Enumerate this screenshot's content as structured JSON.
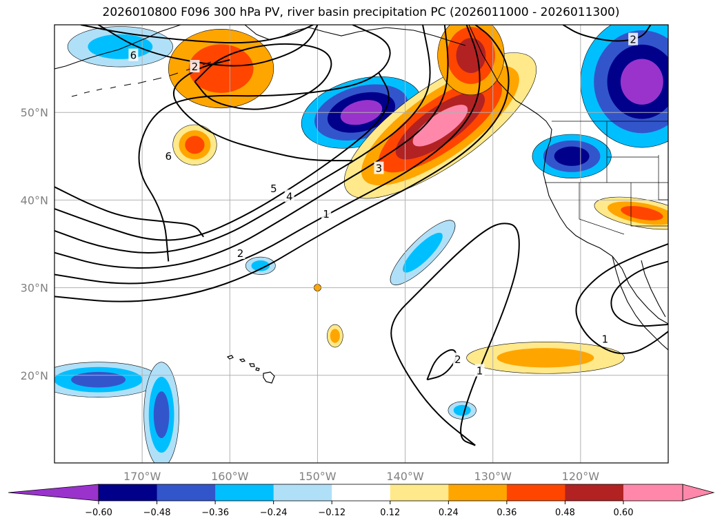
{
  "title": "2026010800 F096 300 hPa PV, river basin precipitation PC (2026011000 - 2026011300)",
  "map": {
    "lon_range": [
      -180,
      -110
    ],
    "lat_range": [
      10,
      60
    ],
    "lon_ticks": [
      {
        "value": -170,
        "label": "170°W"
      },
      {
        "value": -160,
        "label": "160°W"
      },
      {
        "value": -150,
        "label": "150°W"
      },
      {
        "value": -140,
        "label": "140°W"
      },
      {
        "value": -130,
        "label": "130°W"
      },
      {
        "value": -120,
        "label": "120°W"
      }
    ],
    "lat_ticks": [
      {
        "value": 50,
        "label": "50°N"
      },
      {
        "value": 40,
        "label": "40°N"
      },
      {
        "value": 30,
        "label": "30°N"
      },
      {
        "value": 20,
        "label": "20°N"
      }
    ],
    "gridlines": true,
    "contour_labels": [
      {
        "text": "6",
        "lon": -171,
        "lat": 56.5
      },
      {
        "text": "2",
        "lon": -164,
        "lat": 55.2
      },
      {
        "text": "6",
        "lon": -167,
        "lat": 45.0
      },
      {
        "text": "5",
        "lon": -155,
        "lat": 41.3
      },
      {
        "text": "4",
        "lon": -153.2,
        "lat": 40.4
      },
      {
        "text": "3",
        "lon": -143,
        "lat": 43.6
      },
      {
        "text": "1",
        "lon": -149,
        "lat": 38.4
      },
      {
        "text": "2",
        "lon": -158.8,
        "lat": 33.9
      },
      {
        "text": "2",
        "lon": -134,
        "lat": 21.8
      },
      {
        "text": "1",
        "lon": -131.5,
        "lat": 20.5
      },
      {
        "text": "2",
        "lon": -114,
        "lat": 58.3
      },
      {
        "text": "1",
        "lon": -117.2,
        "lat": 24.1
      }
    ]
  },
  "colorbar": {
    "levels": [
      -0.72,
      -0.6,
      -0.48,
      -0.36,
      -0.24,
      -0.12,
      0.12,
      0.24,
      0.36,
      0.48,
      0.6,
      0.72
    ],
    "colors": [
      "#9933cc",
      "#00008b",
      "#3355cc",
      "#00bfff",
      "#b0e0f8",
      "#ffffff",
      "#ffe98a",
      "#ffa500",
      "#ff4500",
      "#b22222",
      "#ff88aa"
    ],
    "under_color": "#9933cc",
    "over_color": "#ff88aa",
    "tick_labels": [
      "−0.60",
      "−0.48",
      "−0.36",
      "−0.24",
      "−0.12",
      "0.12",
      "0.24",
      "0.36",
      "0.48",
      "0.60"
    ]
  },
  "fields": [
    {
      "lon": -161,
      "lat": 55.0,
      "rx": 6,
      "ry": 4.5,
      "rot": 0,
      "levels": [
        "#ffa500",
        "#ff4500"
      ]
    },
    {
      "lon": -145,
      "lat": 50.0,
      "rx": 7,
      "ry": 3.8,
      "rot": -15,
      "levels": [
        "#00bfff",
        "#3355cc",
        "#00008b",
        "#9933cc"
      ]
    },
    {
      "lon": -136,
      "lat": 48.5,
      "rx": 13,
      "ry": 4.5,
      "rot": -35,
      "levels": [
        "#ffe98a",
        "#ffa500",
        "#ff4500",
        "#b22222",
        "#ff88aa"
      ]
    },
    {
      "lon": -132.5,
      "lat": 56.5,
      "rx": 3.8,
      "ry": 4.5,
      "rot": 0,
      "levels": [
        "#ffa500",
        "#ff4500",
        "#b22222"
      ]
    },
    {
      "lon": -164,
      "lat": 46.3,
      "rx": 2.5,
      "ry": 2.3,
      "rot": 0,
      "levels": [
        "#ffe98a",
        "#ffa500",
        "#ff4500"
      ]
    },
    {
      "lon": -113,
      "lat": 53.5,
      "rx": 7,
      "ry": 7.5,
      "rot": 0,
      "levels": [
        "#00bfff",
        "#3355cc",
        "#00008b",
        "#9933cc"
      ]
    },
    {
      "lon": -121,
      "lat": 45.0,
      "rx": 4.5,
      "ry": 2.5,
      "rot": 0,
      "levels": [
        "#00bfff",
        "#3355cc",
        "#00008b"
      ]
    },
    {
      "lon": -113,
      "lat": 38.5,
      "rx": 5.5,
      "ry": 1.6,
      "rot": 10,
      "levels": [
        "#ffe98a",
        "#ffa500",
        "#ff4500"
      ]
    },
    {
      "lon": -172.5,
      "lat": 57.5,
      "rx": 6,
      "ry": 2.3,
      "rot": 0,
      "levels": [
        "#b0e0f8",
        "#00bfff"
      ]
    },
    {
      "lon": -138,
      "lat": 34.0,
      "rx": 5,
      "ry": 1.5,
      "rot": -45,
      "levels": [
        "#b0e0f8",
        "#00bfff"
      ]
    },
    {
      "lon": -124,
      "lat": 22.0,
      "rx": 9,
      "ry": 1.8,
      "rot": 0,
      "levels": [
        "#ffe98a",
        "#ffa500"
      ]
    },
    {
      "lon": -148,
      "lat": 24.5,
      "rx": 0.9,
      "ry": 1.3,
      "rot": 0,
      "levels": [
        "#ffe98a",
        "#ffa500"
      ]
    },
    {
      "lon": -156.5,
      "lat": 32.5,
      "rx": 1.7,
      "ry": 1.0,
      "rot": 0,
      "levels": [
        "#b0e0f8",
        "#00bfff"
      ]
    },
    {
      "lon": -133.5,
      "lat": 16.0,
      "rx": 1.6,
      "ry": 1.0,
      "rot": 0,
      "levels": [
        "#b0e0f8",
        "#00bfff"
      ]
    },
    {
      "lon": -175,
      "lat": 19.5,
      "rx": 7,
      "ry": 2.0,
      "rot": 0,
      "levels": [
        "#b0e0f8",
        "#00bfff",
        "#3355cc"
      ]
    },
    {
      "lon": -167.8,
      "lat": 15.5,
      "rx": 2.0,
      "ry": 6.0,
      "rot": 0,
      "levels": [
        "#b0e0f8",
        "#00bfff",
        "#3355cc"
      ]
    },
    {
      "lon": -150,
      "lat": 30.0,
      "rx": 0.4,
      "ry": 0.4,
      "rot": 0,
      "levels": [
        "#ffa500"
      ]
    }
  ],
  "contours": [
    [
      [
        -180,
        29
      ],
      [
        -172,
        28.2
      ],
      [
        -164,
        29.2
      ],
      [
        -157,
        31.7
      ],
      [
        -151,
        35.3
      ],
      [
        -145,
        38.7
      ],
      [
        -138,
        42.2
      ],
      [
        -132,
        46.2
      ],
      [
        -128.5,
        50.5
      ],
      [
        -128,
        55
      ],
      [
        -130,
        58.5
      ],
      [
        -132,
        60
      ]
    ],
    [
      [
        -180,
        31.5
      ],
      [
        -172,
        30.2
      ],
      [
        -164,
        31.2
      ],
      [
        -157,
        33.7
      ],
      [
        -151,
        37.2
      ],
      [
        -145,
        40.4
      ],
      [
        -139,
        43.6
      ],
      [
        -134,
        47.5
      ],
      [
        -131.5,
        51.5
      ],
      [
        -131.5,
        56
      ],
      [
        -133,
        60
      ]
    ],
    [
      [
        -180,
        34
      ],
      [
        -174,
        32.3
      ],
      [
        -167,
        32.2
      ],
      [
        -160,
        34.3
      ],
      [
        -154,
        37.8
      ],
      [
        -148,
        41.5
      ],
      [
        -142.5,
        44.8
      ],
      [
        -138,
        48
      ],
      [
        -135.5,
        51.5
      ],
      [
        -135,
        55.5
      ],
      [
        -135.5,
        60
      ]
    ],
    [
      [
        -180,
        36.5
      ],
      [
        -174.5,
        34.5
      ],
      [
        -168,
        33.7
      ],
      [
        -161,
        35.6
      ],
      [
        -155,
        39
      ],
      [
        -149,
        42.6
      ],
      [
        -144,
        45.6
      ],
      [
        -140,
        48.6
      ],
      [
        -137.5,
        51.8
      ],
      [
        -137,
        55
      ],
      [
        -138,
        60
      ]
    ],
    [
      [
        -180,
        39
      ],
      [
        -174.5,
        37
      ],
      [
        -169,
        35.3
      ],
      [
        -164,
        35.6
      ],
      [
        -158,
        38.3
      ],
      [
        -152,
        42
      ],
      [
        -147,
        45.5
      ],
      [
        -143,
        48.8
      ],
      [
        -141.5,
        51.8
      ],
      [
        -143,
        54.5
      ]
    ],
    [
      [
        -180,
        41.5
      ],
      [
        -176,
        39.5
      ],
      [
        -172,
        38
      ],
      [
        -167,
        37.5
      ],
      [
        -164,
        37.2
      ],
      [
        -163,
        35.8
      ]
    ],
    [
      [
        -167,
        33
      ],
      [
        -167.5,
        38.5
      ],
      [
        -171,
        44
      ],
      [
        -169,
        50
      ],
      [
        -164,
        52
      ],
      [
        -155,
        51.8
      ],
      [
        -146,
        52.8
      ],
      [
        -142,
        55
      ],
      [
        -141.5,
        58
      ],
      [
        -146,
        60
      ]
    ],
    [
      [
        -175,
        60
      ],
      [
        -170,
        57
      ],
      [
        -163,
        55.5
      ],
      [
        -158,
        55.2
      ],
      [
        -153.5,
        56.5
      ],
      [
        -151,
        58
      ],
      [
        -150,
        60
      ]
    ],
    [
      [
        -177,
        60
      ],
      [
        -172,
        59
      ],
      [
        -165,
        58.2
      ],
      [
        -158,
        57.8
      ],
      [
        -153,
        58.8
      ],
      [
        -150.5,
        60
      ]
    ],
    [
      [
        -164,
        53.5
      ],
      [
        -162,
        51
      ],
      [
        -156,
        50
      ],
      [
        -150,
        52.5
      ],
      [
        -148,
        55.5
      ],
      [
        -149.5,
        57.5
      ],
      [
        -155,
        58
      ],
      [
        -161,
        56.5
      ],
      [
        -164,
        53.5
      ]
    ],
    [
      [
        -146,
        44.5
      ],
      [
        -151,
        44.5
      ],
      [
        -156,
        45.6
      ],
      [
        -161,
        47
      ],
      [
        -165,
        49.5
      ],
      [
        -167,
        52.5
      ],
      [
        -164,
        55
      ],
      [
        -160,
        56
      ]
    ],
    [
      [
        -132,
        12
      ],
      [
        -137,
        16
      ],
      [
        -141,
        22
      ],
      [
        -142,
        26
      ],
      [
        -138,
        30
      ],
      [
        -134,
        34
      ],
      [
        -131,
        36.5
      ],
      [
        -129,
        37.5
      ],
      [
        -127,
        37
      ],
      [
        -127,
        33
      ],
      [
        -128.5,
        28
      ],
      [
        -131,
        22
      ],
      [
        -133,
        17
      ],
      [
        -134,
        12.8
      ],
      [
        -132,
        12
      ]
    ],
    [
      [
        -137.5,
        19.5
      ],
      [
        -136.5,
        22
      ],
      [
        -134.5,
        23.2
      ],
      [
        -134,
        22
      ],
      [
        -135.5,
        20
      ],
      [
        -137.5,
        19.5
      ]
    ],
    [
      [
        -110,
        35
      ],
      [
        -114,
        33.5
      ],
      [
        -118,
        31.5
      ],
      [
        -121,
        28
      ],
      [
        -119.5,
        24.5
      ],
      [
        -116.5,
        22.5
      ],
      [
        -114,
        22.5
      ],
      [
        -112,
        23.5
      ],
      [
        -110,
        25
      ]
    ],
    [
      [
        -110,
        33
      ],
      [
        -113.5,
        32
      ],
      [
        -116.5,
        29.5
      ],
      [
        -116.5,
        27
      ],
      [
        -114,
        25.5
      ],
      [
        -110,
        25.8
      ]
    ],
    [
      [
        -112,
        60
      ],
      [
        -113,
        58.5
      ],
      [
        -116,
        58
      ],
      [
        -120,
        58.8
      ],
      [
        -122,
        60
      ]
    ]
  ]
}
